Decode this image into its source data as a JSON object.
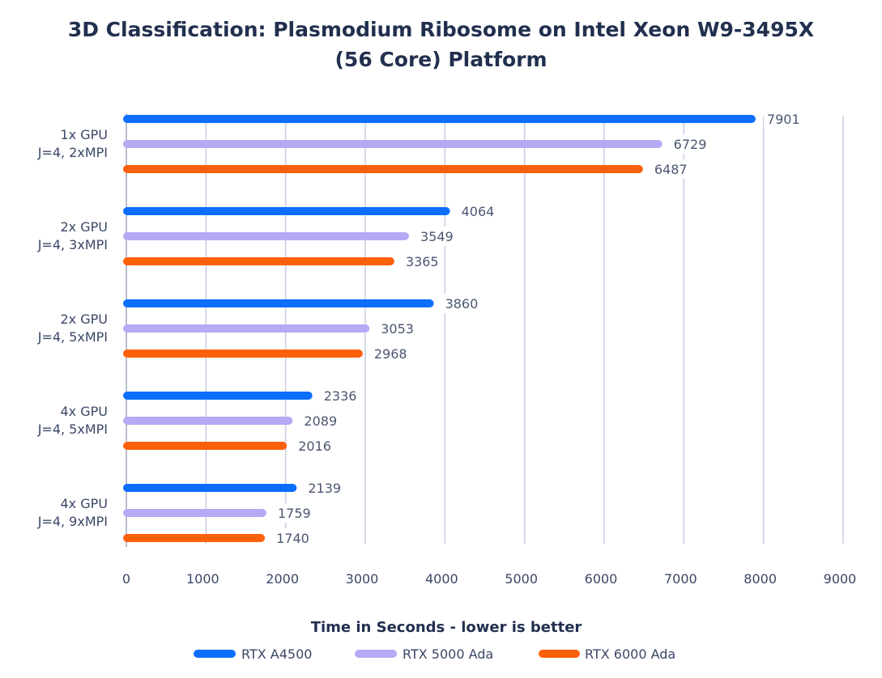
{
  "title_lines": [
    "3D Classification: Plasmodium Ribosome on Intel Xeon W9-3495X",
    "(56 Core) Platform"
  ],
  "chart_data": {
    "type": "bar",
    "orientation": "horizontal",
    "title": "3D Classification: Plasmodium Ribosome on Intel Xeon W9-3495X (56 Core) Platform",
    "xlabel": "Time in Seconds - lower is better",
    "ylabel": "",
    "xlim": [
      0,
      9000
    ],
    "xticks": [
      0,
      1000,
      2000,
      3000,
      4000,
      5000,
      6000,
      7000,
      8000,
      9000
    ],
    "grid": "vertical",
    "legend_position": "bottom",
    "categories": [
      [
        "1x GPU",
        "J=4, 2xMPI"
      ],
      [
        "2x GPU",
        "J=4, 3xMPI"
      ],
      [
        "2x GPU",
        "J=4, 5xMPI"
      ],
      [
        "4x GPU",
        "J=4, 5xMPI"
      ],
      [
        "4x GPU",
        "J=4, 9xMPI"
      ]
    ],
    "series": [
      {
        "name": "RTX A4500",
        "color": "#0d6efd",
        "values": [
          7901,
          4064,
          3860,
          2336,
          2139
        ]
      },
      {
        "name": "RTX 5000 Ada",
        "color": "#b8a9f5",
        "values": [
          6729,
          3549,
          3053,
          2089,
          1759
        ]
      },
      {
        "name": "RTX 6000 Ada",
        "color": "#fc600b",
        "values": [
          6487,
          3365,
          2968,
          2016,
          1740
        ]
      }
    ]
  },
  "colors": {
    "title": "#22304f",
    "label": "#3a4766",
    "value_label": "#4a5670",
    "grid": "#c9d0e3",
    "axis": "#9aa3bc"
  }
}
